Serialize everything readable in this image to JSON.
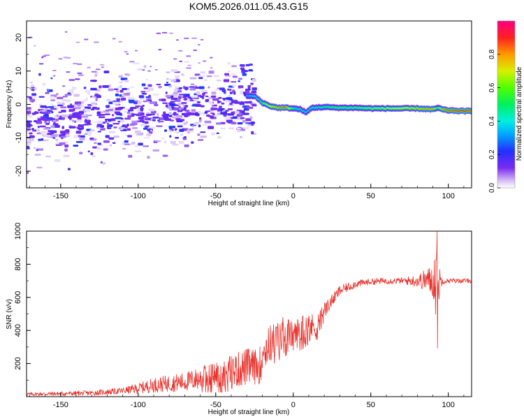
{
  "title": "KOM5.2026.011.05.43.G15",
  "chart_data": [
    {
      "type": "heatmap",
      "name": "spectrogram",
      "xlabel": "Height of straight line (km)",
      "ylabel": "Frequency (Hz)",
      "xlim": [
        -172,
        115
      ],
      "ylim": [
        -25,
        25
      ],
      "xticks": [
        -150,
        -100,
        -50,
        0,
        50,
        100
      ],
      "yticks": [
        -20,
        -10,
        0,
        10,
        20
      ],
      "colorbar": {
        "label": "Normalized spectral amplitude",
        "range": [
          0,
          1
        ],
        "ticks": [
          "0.0",
          "0.2",
          "0.4",
          "0.6",
          "0.8"
        ],
        "colormap": "rainbow-white-low"
      },
      "features": {
        "carrier_line": {
          "x": [
            -30,
            -25,
            -20,
            -15,
            -10,
            -5,
            0,
            5,
            8,
            12,
            20,
            30,
            40,
            50,
            60,
            70,
            80,
            90,
            93,
            96,
            100,
            110,
            115
          ],
          "freq": [
            2.5,
            2.5,
            0.5,
            -0.5,
            -1.0,
            -1.0,
            -1.2,
            -1.5,
            -2.5,
            -1.0,
            -0.8,
            -1.0,
            -1.0,
            -1.2,
            -1.2,
            -1.2,
            -1.2,
            -1.5,
            -1.0,
            -1.5,
            -1.8,
            -2.0,
            -2.0
          ],
          "amplitude": [
            0.35,
            0.4,
            0.55,
            0.7,
            0.8,
            0.85,
            0.5,
            0.45,
            0.4,
            0.45,
            0.5,
            0.55,
            0.55,
            0.6,
            0.65,
            0.7,
            0.75,
            0.8,
            0.5,
            0.8,
            0.85,
            0.9,
            0.85
          ]
        },
        "scatter_region": {
          "x_range": [
            -172,
            -25
          ],
          "freq_center_start": -6,
          "freq_center_end": 1,
          "spread": 9,
          "amplitude_range": [
            0.02,
            0.25
          ]
        },
        "upper_blob": {
          "x": -30,
          "freq": 10.5,
          "amplitude": 0.2
        }
      }
    },
    {
      "type": "line",
      "name": "snr",
      "xlabel": "Height of straight line (km)",
      "ylabel": "SNR (v/v)",
      "xlim": [
        -172,
        115
      ],
      "ylim": [
        0,
        1000
      ],
      "xticks": [
        -150,
        -100,
        -50,
        0,
        50,
        100
      ],
      "yticks": [
        200,
        400,
        600,
        800,
        1000
      ],
      "color": "#e8302a",
      "envelope": {
        "x": [
          -172,
          -150,
          -130,
          -110,
          -100,
          -90,
          -80,
          -70,
          -60,
          -50,
          -40,
          -30,
          -22,
          -20,
          -15,
          -10,
          -5,
          0,
          5,
          10,
          15,
          20,
          25,
          30,
          40,
          50,
          60,
          70,
          80,
          85,
          90,
          92,
          93,
          94,
          96,
          100,
          110,
          115
        ],
        "mean": [
          15,
          18,
          22,
          35,
          50,
          70,
          80,
          90,
          110,
          130,
          150,
          180,
          180,
          260,
          320,
          350,
          380,
          370,
          400,
          420,
          420,
          520,
          580,
          640,
          680,
          695,
          700,
          700,
          700,
          705,
          700,
          720,
          650,
          690,
          700,
          700,
          700,
          700
        ],
        "noise": [
          8,
          10,
          12,
          15,
          25,
          35,
          40,
          45,
          55,
          70,
          80,
          90,
          80,
          90,
          90,
          90,
          90,
          60,
          80,
          70,
          60,
          40,
          30,
          25,
          18,
          15,
          15,
          15,
          30,
          50,
          80,
          200,
          300,
          100,
          15,
          12,
          10,
          10
        ]
      }
    }
  ]
}
